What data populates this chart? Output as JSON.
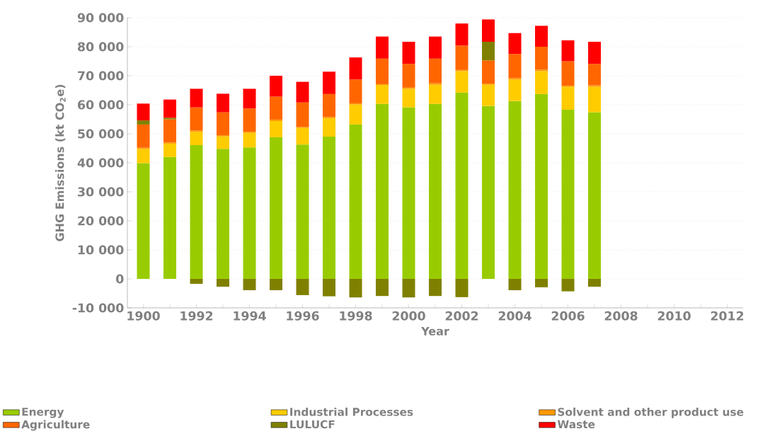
{
  "chart_data": {
    "type": "bar",
    "stacked": true,
    "xlabel": "Year",
    "ylabel": "GHG Emissions (kt CO$_{2}$e)",
    "categories": [
      "1900",
      null,
      "1992",
      null,
      "1994",
      null,
      "1996",
      null,
      "1998",
      null,
      "2000",
      null,
      "2002",
      null,
      "2004",
      null,
      "2006",
      null,
      "2008",
      null,
      "2010",
      null,
      "2012"
    ],
    "series": [
      {
        "name": "Energy",
        "color": "#99cc00",
        "values": [
          39900,
          42000,
          46100,
          44800,
          45300,
          48800,
          46300,
          49000,
          53200,
          60300,
          59100,
          60300,
          64200,
          59600,
          61300,
          63700,
          58300,
          57400,
          null,
          null,
          null,
          null,
          null
        ]
      },
      {
        "name": "Industrial Processes",
        "color": "#ffcc00",
        "values": [
          4900,
          4600,
          4600,
          4300,
          5000,
          5600,
          5700,
          6400,
          6900,
          6500,
          6400,
          6600,
          7400,
          7300,
          7400,
          7900,
          7900,
          8800,
          null,
          null,
          null,
          null,
          null
        ]
      },
      {
        "name": "Solvent and other product use",
        "color": "#ff9900",
        "values": [
          400,
          400,
          400,
          400,
          400,
          500,
          400,
          400,
          400,
          300,
          400,
          500,
          400,
          400,
          500,
          500,
          400,
          500,
          null,
          null,
          null,
          null,
          null
        ]
      },
      {
        "name": "Agriculture",
        "color": "#ff6600",
        "values": [
          8000,
          8000,
          8000,
          7900,
          8000,
          7900,
          8400,
          7900,
          8200,
          8800,
          8200,
          8500,
          8400,
          8000,
          8300,
          7900,
          8400,
          7400,
          null,
          null,
          null,
          null,
          null
        ]
      },
      {
        "name": "LULUCF",
        "color": "#808000",
        "values": [
          1400,
          500,
          -1700,
          -2700,
          -3900,
          -3900,
          -5600,
          -6000,
          -6400,
          -5900,
          -6400,
          -5900,
          -6300,
          6400,
          -3900,
          -2900,
          -4300,
          -2700,
          null,
          null,
          null,
          null,
          null
        ]
      },
      {
        "name": "Waste",
        "color": "#ff0000",
        "values": [
          5800,
          6300,
          6400,
          6400,
          6800,
          7200,
          7100,
          7700,
          7600,
          7600,
          7600,
          7600,
          7600,
          7700,
          7200,
          7200,
          7200,
          7600,
          null,
          null,
          null,
          null,
          null
        ]
      }
    ],
    "ylim": [
      -10000,
      90000
    ],
    "yticks": [
      {
        "value": -10000,
        "label": "-10 000"
      },
      0,
      {
        "value": 10000,
        "label": "10 000"
      },
      {
        "value": 20000,
        "label": "20 000"
      },
      {
        "value": 30000,
        "label": "30 000"
      },
      {
        "value": 40000,
        "label": "40 000"
      },
      {
        "value": 50000,
        "label": "50 000"
      },
      {
        "value": 60000,
        "label": "60 000"
      },
      {
        "value": 70000,
        "label": "70 000"
      },
      {
        "value": 80000,
        "label": "80 000"
      },
      {
        "value": 90000,
        "label": "90 000"
      }
    ],
    "grid": "y",
    "legend": "bottom"
  }
}
